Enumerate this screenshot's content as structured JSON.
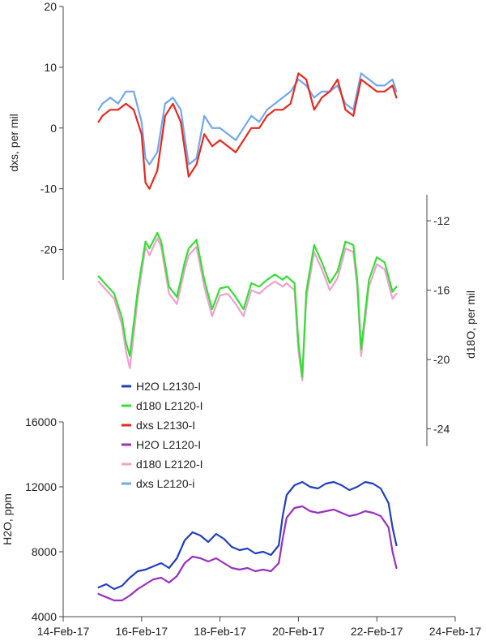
{
  "chart_data": [
    {
      "type": "line",
      "panel": "dxs",
      "ylabel": "dxs, per mil",
      "ylim": [
        -25,
        20
      ],
      "yticks": [
        "20",
        "10",
        "0",
        "-10",
        "-20"
      ],
      "yaxis_side": "left",
      "series": [
        {
          "name": "dxs L2120-i",
          "color": "#6fa8f0",
          "x": [
            14.9,
            15.0,
            15.2,
            15.4,
            15.6,
            15.8,
            16.0,
            16.1,
            16.2,
            16.4,
            16.6,
            16.8,
            17.0,
            17.2,
            17.4,
            17.6,
            17.8,
            18.0,
            18.2,
            18.4,
            18.6,
            18.8,
            19.0,
            19.2,
            19.4,
            19.6,
            19.8,
            20.0,
            20.2,
            20.4,
            20.6,
            20.8,
            21.0,
            21.2,
            21.4,
            21.6,
            21.8,
            22.0,
            22.2,
            22.4,
            22.5
          ],
          "y": [
            3,
            4,
            5,
            4,
            6,
            6,
            1,
            -5,
            -6,
            -4,
            4,
            5,
            3,
            -6,
            -5,
            2,
            0,
            0,
            -1,
            -2,
            0,
            2,
            1,
            3,
            4,
            5,
            6,
            8,
            7,
            5,
            6,
            6,
            7,
            4,
            3,
            9,
            8,
            7,
            7,
            8,
            6
          ]
        },
        {
          "name": "dxs L2130-i",
          "color": "#e8281e",
          "x": [
            14.9,
            15.0,
            15.2,
            15.4,
            15.6,
            15.8,
            16.0,
            16.1,
            16.2,
            16.4,
            16.6,
            16.8,
            17.0,
            17.2,
            17.4,
            17.6,
            17.8,
            18.0,
            18.2,
            18.4,
            18.6,
            18.8,
            19.0,
            19.2,
            19.4,
            19.6,
            19.8,
            20.0,
            20.2,
            20.4,
            20.6,
            20.8,
            21.0,
            21.2,
            21.4,
            21.6,
            21.8,
            22.0,
            22.2,
            22.4,
            22.5
          ],
          "y": [
            1,
            2,
            3,
            3,
            4,
            3,
            -1,
            -9,
            -10,
            -7,
            2,
            4,
            1,
            -8,
            -6,
            -1,
            -3,
            -2,
            -3,
            -4,
            -2,
            0,
            0,
            2,
            3,
            3,
            4,
            9,
            8,
            3,
            5,
            6,
            8,
            3,
            2,
            8,
            7,
            6,
            6,
            7,
            5
          ]
        }
      ]
    },
    {
      "type": "line",
      "panel": "d18O",
      "ylabel": "d18O, per mil",
      "ylim": [
        -25,
        -10.5
      ],
      "yticks": [
        "-12",
        "-16",
        "-20",
        "-24"
      ],
      "yaxis_side": "right",
      "series": [
        {
          "name": "d180 L2120-I",
          "color": "#f0a0d0",
          "x": [
            14.9,
            15.1,
            15.3,
            15.5,
            15.6,
            15.7,
            15.9,
            16.1,
            16.2,
            16.4,
            16.5,
            16.7,
            16.9,
            17.1,
            17.2,
            17.4,
            17.6,
            17.8,
            18.0,
            18.2,
            18.4,
            18.6,
            18.8,
            19.0,
            19.2,
            19.4,
            19.6,
            19.7,
            19.9,
            20.0,
            20.1,
            20.2,
            20.4,
            20.6,
            20.8,
            21.0,
            21.2,
            21.4,
            21.5,
            21.6,
            21.8,
            22.0,
            22.2,
            22.4,
            22.5
          ],
          "y": [
            -15.5,
            -16.0,
            -16.5,
            -18.0,
            -19.5,
            -20.5,
            -16.5,
            -13.5,
            -14.0,
            -13.0,
            -13.5,
            -16.2,
            -16.8,
            -14.8,
            -14.0,
            -13.5,
            -15.8,
            -17.5,
            -16.3,
            -16.2,
            -16.8,
            -17.5,
            -16.0,
            -16.2,
            -15.8,
            -15.5,
            -15.8,
            -15.6,
            -16.0,
            -19.5,
            -21.2,
            -16.5,
            -13.8,
            -14.8,
            -16.0,
            -15.3,
            -13.6,
            -13.8,
            -15.8,
            -19.8,
            -15.8,
            -14.5,
            -14.8,
            -16.5,
            -16.2
          ]
        },
        {
          "name": "d180 L2120-I",
          "color": "#33e033",
          "x": [
            14.9,
            15.1,
            15.3,
            15.5,
            15.6,
            15.7,
            15.9,
            16.1,
            16.2,
            16.4,
            16.5,
            16.7,
            16.9,
            17.1,
            17.2,
            17.4,
            17.6,
            17.8,
            18.0,
            18.2,
            18.4,
            18.6,
            18.8,
            19.0,
            19.2,
            19.4,
            19.6,
            19.7,
            19.9,
            20.0,
            20.1,
            20.2,
            20.4,
            20.6,
            20.8,
            21.0,
            21.2,
            21.4,
            21.5,
            21.6,
            21.8,
            22.0,
            22.2,
            22.4,
            22.5
          ],
          "y": [
            -15.2,
            -15.7,
            -16.2,
            -17.6,
            -19.0,
            -19.8,
            -16.0,
            -13.2,
            -13.6,
            -12.7,
            -13.2,
            -15.8,
            -16.4,
            -14.4,
            -13.6,
            -13.1,
            -15.4,
            -17.1,
            -15.9,
            -15.8,
            -16.4,
            -17.1,
            -15.6,
            -15.8,
            -15.4,
            -15.1,
            -15.4,
            -15.2,
            -15.6,
            -19.0,
            -21.0,
            -16.1,
            -13.4,
            -14.4,
            -15.6,
            -14.9,
            -13.2,
            -13.4,
            -15.4,
            -19.4,
            -15.4,
            -14.1,
            -14.4,
            -16.1,
            -15.8
          ]
        }
      ]
    },
    {
      "type": "line",
      "panel": "H2O",
      "ylabel": "H2O, ppm",
      "ylim": [
        4000,
        16000
      ],
      "yticks": [
        "16000",
        "12000",
        "8000",
        "4000"
      ],
      "yaxis_side": "left",
      "xlim": [
        14,
        24
      ],
      "xticks": [
        "14-Feb-17",
        "16-Feb-17",
        "18-Feb-17",
        "20-Feb-17",
        "22-Feb-17",
        "24-Feb-17"
      ],
      "series": [
        {
          "name": "H2O L2130-I",
          "color": "#1f3fbf",
          "x": [
            14.9,
            15.1,
            15.3,
            15.5,
            15.7,
            15.9,
            16.1,
            16.3,
            16.5,
            16.7,
            16.9,
            17.1,
            17.3,
            17.5,
            17.7,
            17.9,
            18.1,
            18.3,
            18.5,
            18.7,
            18.9,
            19.1,
            19.3,
            19.5,
            19.6,
            19.7,
            19.9,
            20.1,
            20.3,
            20.5,
            20.7,
            20.9,
            21.1,
            21.3,
            21.5,
            21.7,
            21.9,
            22.1,
            22.3,
            22.4,
            22.5
          ],
          "y": [
            5800,
            6000,
            5700,
            5900,
            6400,
            6800,
            6900,
            7100,
            7300,
            7000,
            7600,
            8700,
            9200,
            9000,
            8600,
            9100,
            8800,
            8300,
            8100,
            8200,
            7900,
            8000,
            7800,
            8400,
            10200,
            11500,
            12100,
            12300,
            12000,
            11900,
            12200,
            12300,
            12100,
            11800,
            12000,
            12300,
            12200,
            11900,
            11000,
            9500,
            8400
          ]
        },
        {
          "name": "H2O L2120-I",
          "color": "#9a2fc0",
          "x": [
            14.9,
            15.1,
            15.3,
            15.5,
            15.7,
            15.9,
            16.1,
            16.3,
            16.5,
            16.7,
            16.9,
            17.1,
            17.3,
            17.5,
            17.7,
            17.9,
            18.1,
            18.3,
            18.5,
            18.7,
            18.9,
            19.1,
            19.3,
            19.5,
            19.6,
            19.7,
            19.9,
            20.1,
            20.3,
            20.5,
            20.7,
            20.9,
            21.1,
            21.3,
            21.5,
            21.7,
            21.9,
            22.1,
            22.3,
            22.4,
            22.5
          ],
          "y": [
            5400,
            5200,
            5000,
            5000,
            5300,
            5700,
            6000,
            6300,
            6400,
            6100,
            6500,
            7300,
            7700,
            7600,
            7400,
            7600,
            7300,
            7000,
            6900,
            7000,
            6800,
            6900,
            6800,
            7300,
            8800,
            10100,
            10700,
            10800,
            10500,
            10400,
            10500,
            10600,
            10400,
            10200,
            10300,
            10500,
            10400,
            10200,
            9500,
            8000,
            7000
          ]
        }
      ]
    }
  ],
  "legend": {
    "placement": "center-left",
    "items": [
      {
        "label": "H2O L2130-I",
        "color": "#1f3fbf"
      },
      {
        "label": "d180 L2120-I",
        "color": "#33e033"
      },
      {
        "label": "dxs L2130-I",
        "color": "#e8281e"
      },
      {
        "label": "H2O L2120-I",
        "color": "#9a2fc0"
      },
      {
        "label": "d180 L2120-I",
        "color": "#f0a0d0"
      },
      {
        "label": "dxs L2120-i",
        "color": "#6fa8f0"
      }
    ]
  }
}
